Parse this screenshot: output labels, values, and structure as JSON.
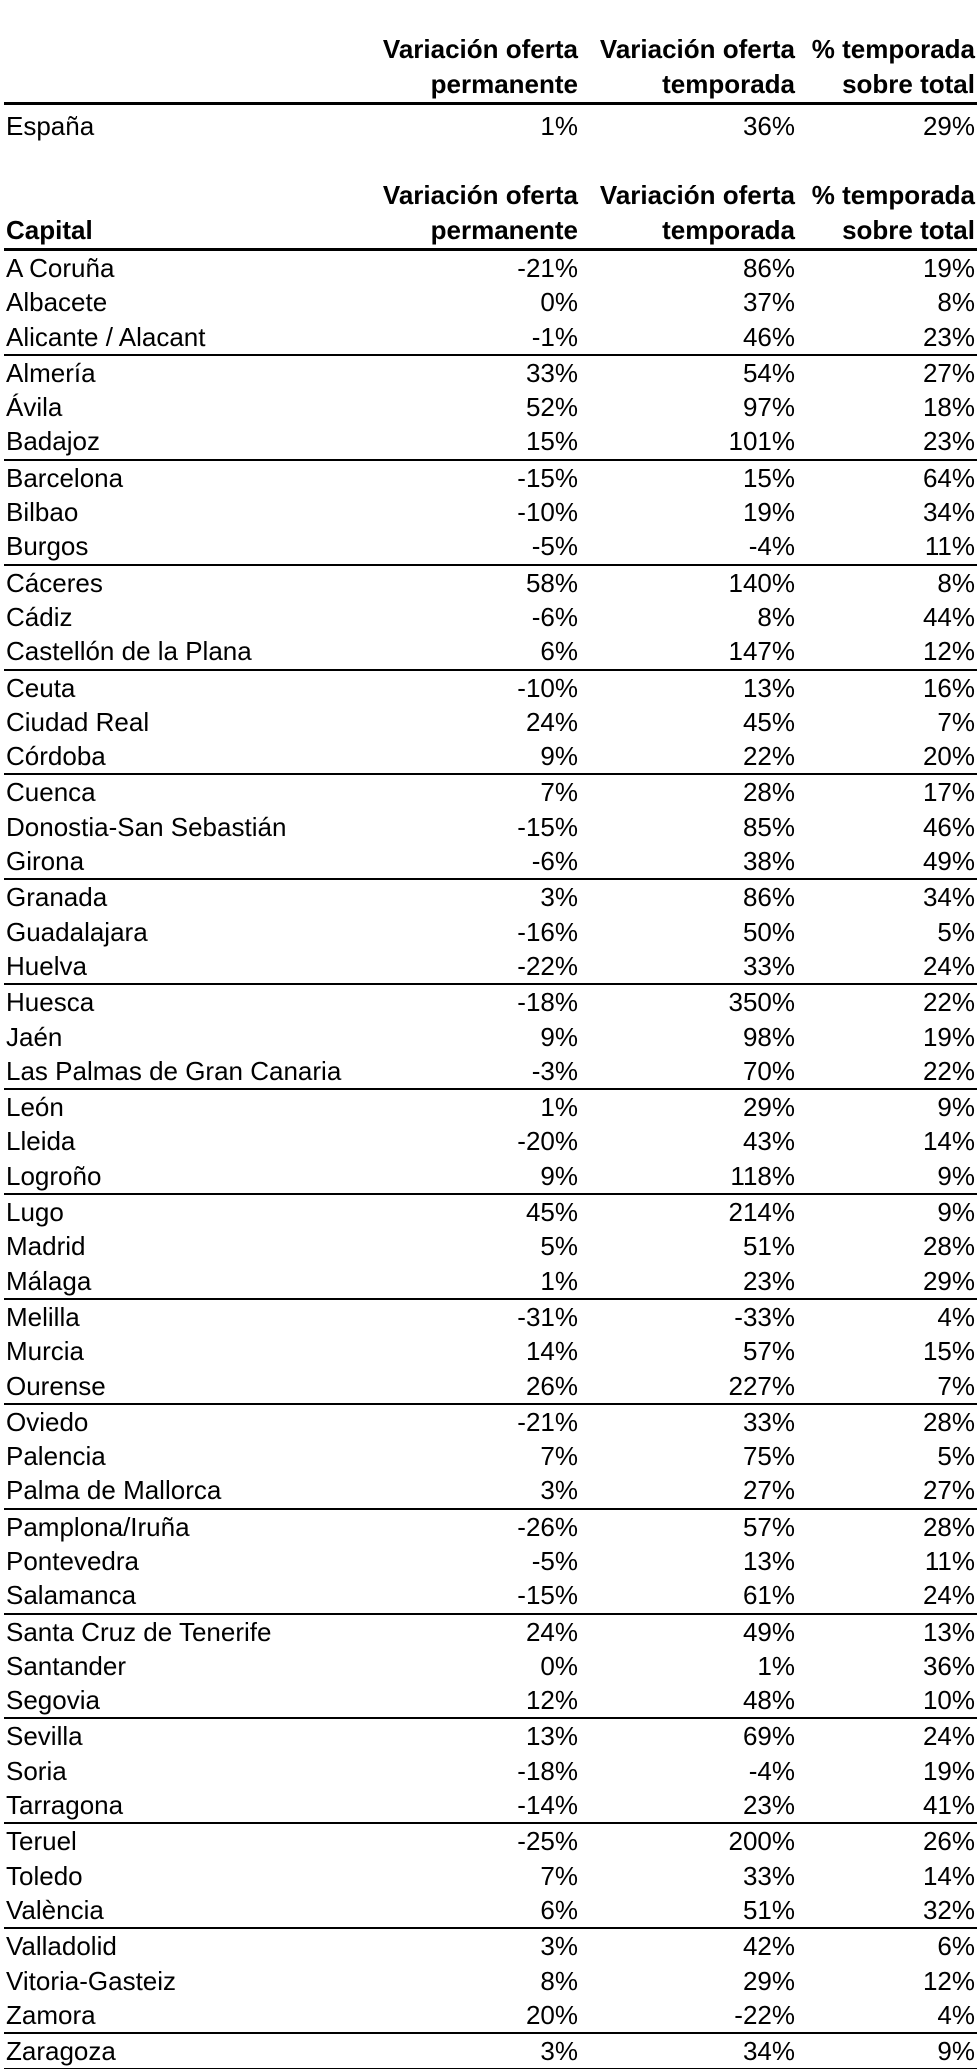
{
  "tables": [
    {
      "name": "national",
      "header": [
        {
          "line1": "",
          "line2": ""
        },
        {
          "line1": "Variación oferta",
          "line2": "permanente"
        },
        {
          "line1": "Variación oferta",
          "line2": "temporada"
        },
        {
          "line1": "% temporada",
          "line2": "sobre total"
        }
      ],
      "group_size": 0,
      "bottom_border": false,
      "rows": [
        {
          "label": "España",
          "values": [
            "1%",
            "36%",
            "29%"
          ]
        }
      ]
    },
    {
      "name": "capitals",
      "header": [
        {
          "line1": "",
          "line2": "Capital"
        },
        {
          "line1": "Variación oferta",
          "line2": "permanente"
        },
        {
          "line1": "Variación oferta",
          "line2": "temporada"
        },
        {
          "line1": "% temporada",
          "line2": "sobre total"
        }
      ],
      "group_size": 3,
      "bottom_border": true,
      "rows": [
        {
          "label": "A Coruña",
          "values": [
            "-21%",
            "86%",
            "19%"
          ]
        },
        {
          "label": "Albacete",
          "values": [
            "0%",
            "37%",
            "8%"
          ]
        },
        {
          "label": "Alicante / Alacant",
          "values": [
            "-1%",
            "46%",
            "23%"
          ]
        },
        {
          "label": "Almería",
          "values": [
            "33%",
            "54%",
            "27%"
          ]
        },
        {
          "label": "Ávila",
          "values": [
            "52%",
            "97%",
            "18%"
          ]
        },
        {
          "label": "Badajoz",
          "values": [
            "15%",
            "101%",
            "23%"
          ]
        },
        {
          "label": "Barcelona",
          "values": [
            "-15%",
            "15%",
            "64%"
          ]
        },
        {
          "label": "Bilbao",
          "values": [
            "-10%",
            "19%",
            "34%"
          ]
        },
        {
          "label": "Burgos",
          "values": [
            "-5%",
            "-4%",
            "11%"
          ]
        },
        {
          "label": "Cáceres",
          "values": [
            "58%",
            "140%",
            "8%"
          ]
        },
        {
          "label": "Cádiz",
          "values": [
            "-6%",
            "8%",
            "44%"
          ]
        },
        {
          "label": "Castellón de la Plana",
          "values": [
            "6%",
            "147%",
            "12%"
          ]
        },
        {
          "label": "Ceuta",
          "values": [
            "-10%",
            "13%",
            "16%"
          ]
        },
        {
          "label": "Ciudad Real",
          "values": [
            "24%",
            "45%",
            "7%"
          ]
        },
        {
          "label": "Córdoba",
          "values": [
            "9%",
            "22%",
            "20%"
          ]
        },
        {
          "label": "Cuenca",
          "values": [
            "7%",
            "28%",
            "17%"
          ]
        },
        {
          "label": "Donostia-San Sebastián",
          "values": [
            "-15%",
            "85%",
            "46%"
          ]
        },
        {
          "label": "Girona",
          "values": [
            "-6%",
            "38%",
            "49%"
          ]
        },
        {
          "label": "Granada",
          "values": [
            "3%",
            "86%",
            "34%"
          ]
        },
        {
          "label": "Guadalajara",
          "values": [
            "-16%",
            "50%",
            "5%"
          ]
        },
        {
          "label": "Huelva",
          "values": [
            "-22%",
            "33%",
            "24%"
          ]
        },
        {
          "label": "Huesca",
          "values": [
            "-18%",
            "350%",
            "22%"
          ]
        },
        {
          "label": "Jaén",
          "values": [
            "9%",
            "98%",
            "19%"
          ]
        },
        {
          "label": "Las Palmas de Gran Canaria",
          "values": [
            "-3%",
            "70%",
            "22%"
          ]
        },
        {
          "label": "León",
          "values": [
            "1%",
            "29%",
            "9%"
          ]
        },
        {
          "label": "Lleida",
          "values": [
            "-20%",
            "43%",
            "14%"
          ]
        },
        {
          "label": "Logroño",
          "values": [
            "9%",
            "118%",
            "9%"
          ]
        },
        {
          "label": "Lugo",
          "values": [
            "45%",
            "214%",
            "9%"
          ]
        },
        {
          "label": "Madrid",
          "values": [
            "5%",
            "51%",
            "28%"
          ]
        },
        {
          "label": "Málaga",
          "values": [
            "1%",
            "23%",
            "29%"
          ]
        },
        {
          "label": "Melilla",
          "values": [
            "-31%",
            "-33%",
            "4%"
          ]
        },
        {
          "label": "Murcia",
          "values": [
            "14%",
            "57%",
            "15%"
          ]
        },
        {
          "label": "Ourense",
          "values": [
            "26%",
            "227%",
            "7%"
          ]
        },
        {
          "label": "Oviedo",
          "values": [
            "-21%",
            "33%",
            "28%"
          ]
        },
        {
          "label": "Palencia",
          "values": [
            "7%",
            "75%",
            "5%"
          ]
        },
        {
          "label": "Palma de Mallorca",
          "values": [
            "3%",
            "27%",
            "27%"
          ]
        },
        {
          "label": "Pamplona/Iruña",
          "values": [
            "-26%",
            "57%",
            "28%"
          ]
        },
        {
          "label": "Pontevedra",
          "values": [
            "-5%",
            "13%",
            "11%"
          ]
        },
        {
          "label": "Salamanca",
          "values": [
            "-15%",
            "61%",
            "24%"
          ]
        },
        {
          "label": "Santa Cruz de Tenerife",
          "values": [
            "24%",
            "49%",
            "13%"
          ]
        },
        {
          "label": "Santander",
          "values": [
            "0%",
            "1%",
            "36%"
          ]
        },
        {
          "label": "Segovia",
          "values": [
            "12%",
            "48%",
            "10%"
          ]
        },
        {
          "label": "Sevilla",
          "values": [
            "13%",
            "69%",
            "24%"
          ]
        },
        {
          "label": "Soria",
          "values": [
            "-18%",
            "-4%",
            "19%"
          ]
        },
        {
          "label": "Tarragona",
          "values": [
            "-14%",
            "23%",
            "41%"
          ]
        },
        {
          "label": "Teruel",
          "values": [
            "-25%",
            "200%",
            "26%"
          ]
        },
        {
          "label": "Toledo",
          "values": [
            "7%",
            "33%",
            "14%"
          ]
        },
        {
          "label": "València",
          "values": [
            "6%",
            "51%",
            "32%"
          ]
        },
        {
          "label": "Valladolid",
          "values": [
            "3%",
            "42%",
            "6%"
          ]
        },
        {
          "label": "Vitoria-Gasteiz",
          "values": [
            "8%",
            "29%",
            "12%"
          ]
        },
        {
          "label": "Zamora",
          "values": [
            "20%",
            "-22%",
            "4%"
          ]
        },
        {
          "label": "Zaragoza",
          "values": [
            "3%",
            "34%",
            "9%"
          ]
        }
      ]
    }
  ],
  "chart_data": [
    {
      "type": "table",
      "title": "Variación de oferta - España",
      "columns": [
        "",
        "Variación oferta permanente",
        "Variación oferta temporada",
        "% temporada sobre total"
      ],
      "rows": [
        [
          "España",
          "1%",
          "36%",
          "29%"
        ]
      ]
    },
    {
      "type": "table",
      "title": "Variación de oferta por capital",
      "columns": [
        "Capital",
        "Variación oferta permanente",
        "Variación oferta temporada",
        "% temporada sobre total"
      ],
      "rows": [
        [
          "A Coruña",
          "-21%",
          "86%",
          "19%"
        ],
        [
          "Albacete",
          "0%",
          "37%",
          "8%"
        ],
        [
          "Alicante / Alacant",
          "-1%",
          "46%",
          "23%"
        ],
        [
          "Almería",
          "33%",
          "54%",
          "27%"
        ],
        [
          "Ávila",
          "52%",
          "97%",
          "18%"
        ],
        [
          "Badajoz",
          "15%",
          "101%",
          "23%"
        ],
        [
          "Barcelona",
          "-15%",
          "15%",
          "64%"
        ],
        [
          "Bilbao",
          "-10%",
          "19%",
          "34%"
        ],
        [
          "Burgos",
          "-5%",
          "-4%",
          "11%"
        ],
        [
          "Cáceres",
          "58%",
          "140%",
          "8%"
        ],
        [
          "Cádiz",
          "-6%",
          "8%",
          "44%"
        ],
        [
          "Castellón de la Plana",
          "6%",
          "147%",
          "12%"
        ],
        [
          "Ceuta",
          "-10%",
          "13%",
          "16%"
        ],
        [
          "Ciudad Real",
          "24%",
          "45%",
          "7%"
        ],
        [
          "Córdoba",
          "9%",
          "22%",
          "20%"
        ],
        [
          "Cuenca",
          "7%",
          "28%",
          "17%"
        ],
        [
          "Donostia-San Sebastián",
          "-15%",
          "85%",
          "46%"
        ],
        [
          "Girona",
          "-6%",
          "38%",
          "49%"
        ],
        [
          "Granada",
          "3%",
          "86%",
          "34%"
        ],
        [
          "Guadalajara",
          "-16%",
          "50%",
          "5%"
        ],
        [
          "Huelva",
          "-22%",
          "33%",
          "24%"
        ],
        [
          "Huesca",
          "-18%",
          "350%",
          "22%"
        ],
        [
          "Jaén",
          "9%",
          "98%",
          "19%"
        ],
        [
          "Las Palmas de Gran Canaria",
          "-3%",
          "70%",
          "22%"
        ],
        [
          "León",
          "1%",
          "29%",
          "9%"
        ],
        [
          "Lleida",
          "-20%",
          "43%",
          "14%"
        ],
        [
          "Logroño",
          "9%",
          "118%",
          "9%"
        ],
        [
          "Lugo",
          "45%",
          "214%",
          "9%"
        ],
        [
          "Madrid",
          "5%",
          "51%",
          "28%"
        ],
        [
          "Málaga",
          "1%",
          "23%",
          "29%"
        ],
        [
          "Melilla",
          "-31%",
          "-33%",
          "4%"
        ],
        [
          "Murcia",
          "14%",
          "57%",
          "15%"
        ],
        [
          "Ourense",
          "26%",
          "227%",
          "7%"
        ],
        [
          "Oviedo",
          "-21%",
          "33%",
          "28%"
        ],
        [
          "Palencia",
          "7%",
          "75%",
          "5%"
        ],
        [
          "Palma de Mallorca",
          "3%",
          "27%",
          "27%"
        ],
        [
          "Pamplona/Iruña",
          "-26%",
          "57%",
          "28%"
        ],
        [
          "Pontevedra",
          "-5%",
          "13%",
          "11%"
        ],
        [
          "Salamanca",
          "-15%",
          "61%",
          "24%"
        ],
        [
          "Santa Cruz de Tenerife",
          "24%",
          "49%",
          "13%"
        ],
        [
          "Santander",
          "0%",
          "1%",
          "36%"
        ],
        [
          "Segovia",
          "12%",
          "48%",
          "10%"
        ],
        [
          "Sevilla",
          "13%",
          "69%",
          "24%"
        ],
        [
          "Soria",
          "-18%",
          "-4%",
          "19%"
        ],
        [
          "Tarragona",
          "-14%",
          "23%",
          "41%"
        ],
        [
          "Teruel",
          "-25%",
          "200%",
          "26%"
        ],
        [
          "Toledo",
          "7%",
          "33%",
          "14%"
        ],
        [
          "València",
          "6%",
          "51%",
          "32%"
        ],
        [
          "Valladolid",
          "3%",
          "42%",
          "6%"
        ],
        [
          "Vitoria-Gasteiz",
          "8%",
          "29%",
          "12%"
        ],
        [
          "Zamora",
          "20%",
          "-22%",
          "4%"
        ],
        [
          "Zaragoza",
          "3%",
          "34%",
          "9%"
        ]
      ]
    }
  ],
  "colors": {
    "text": "#000000",
    "background": "#ffffff",
    "rule": "#000000"
  }
}
